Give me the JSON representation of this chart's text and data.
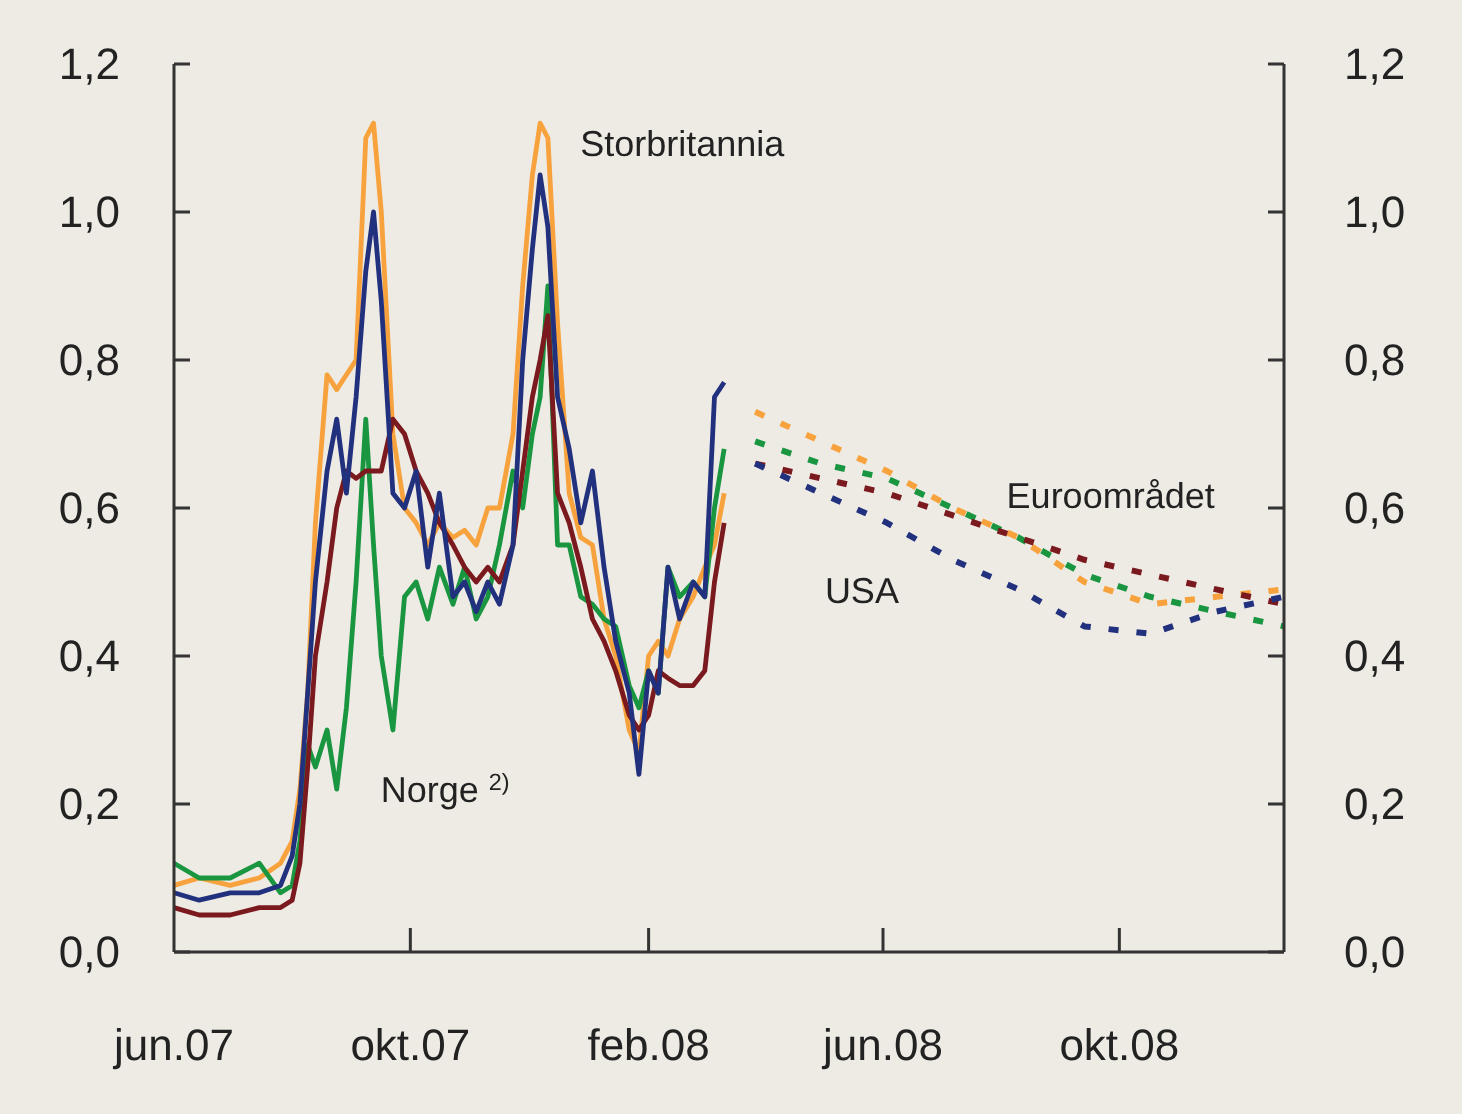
{
  "chart_data": {
    "type": "line",
    "x": [
      "2007-06-01",
      "2007-06-14",
      "2007-06-30",
      "2007-07-15",
      "2007-07-26",
      "2007-08-01",
      "2007-08-05",
      "2007-08-09",
      "2007-08-13",
      "2007-08-19",
      "2007-08-24",
      "2007-08-29",
      "2007-09-03",
      "2007-09-08",
      "2007-09-12",
      "2007-09-16",
      "2007-09-22",
      "2007-09-28",
      "2007-10-04",
      "2007-10-10",
      "2007-10-16",
      "2007-10-23",
      "2007-10-29",
      "2007-11-04",
      "2007-11-10",
      "2007-11-16",
      "2007-11-23",
      "2007-11-28",
      "2007-12-03",
      "2007-12-07",
      "2007-12-11",
      "2007-12-16",
      "2007-12-22",
      "2007-12-28",
      "2008-01-03",
      "2008-01-09",
      "2008-01-15",
      "2008-01-22",
      "2008-01-27",
      "2008-02-01",
      "2008-02-06",
      "2008-02-11",
      "2008-02-17",
      "2008-02-24",
      "2008-03-01",
      "2008-03-06",
      "2008-03-11"
    ],
    "series": [
      {
        "name": "Storbritannia",
        "color": "#f7a23c",
        "values": [
          0.09,
          0.1,
          0.09,
          0.1,
          0.12,
          0.15,
          0.22,
          0.35,
          0.58,
          0.78,
          0.76,
          0.78,
          0.8,
          1.1,
          1.12,
          1.0,
          0.7,
          0.6,
          0.58,
          0.55,
          0.58,
          0.56,
          0.57,
          0.55,
          0.6,
          0.6,
          0.7,
          0.9,
          1.05,
          1.12,
          1.1,
          0.85,
          0.62,
          0.56,
          0.55,
          0.45,
          0.4,
          0.3,
          0.27,
          0.4,
          0.42,
          0.4,
          0.45,
          0.48,
          0.52,
          0.55,
          0.62
        ]
      },
      {
        "name": "Norge $^{2)}$",
        "color": "#1a9641",
        "values": [
          0.12,
          0.1,
          0.1,
          0.12,
          0.08,
          0.09,
          0.15,
          0.28,
          0.25,
          0.3,
          0.22,
          0.33,
          0.5,
          0.72,
          0.55,
          0.4,
          0.3,
          0.48,
          0.5,
          0.45,
          0.52,
          0.47,
          0.52,
          0.45,
          0.48,
          0.55,
          0.65,
          0.6,
          0.7,
          0.75,
          0.9,
          0.55,
          0.55,
          0.48,
          0.47,
          0.45,
          0.44,
          0.36,
          0.33,
          0.38,
          0.35,
          0.52,
          0.48,
          0.5,
          0.48,
          0.6,
          0.68
        ]
      },
      {
        "color": "#7a1a1e",
        "values": [
          0.06,
          0.05,
          0.05,
          0.06,
          0.06,
          0.07,
          0.12,
          0.25,
          0.4,
          0.5,
          0.6,
          0.65,
          0.64,
          0.65,
          0.65,
          0.65,
          0.72,
          0.7,
          0.65,
          0.62,
          0.58,
          0.55,
          0.52,
          0.5,
          0.52,
          0.5,
          0.55,
          0.65,
          0.75,
          0.8,
          0.86,
          0.62,
          0.58,
          0.52,
          0.45,
          0.42,
          0.38,
          0.32,
          0.3,
          0.32,
          0.38,
          0.37,
          0.36,
          0.36,
          0.38,
          0.5,
          0.58
        ]
      },
      {
        "color": "#22317e",
        "values": [
          0.08,
          0.07,
          0.08,
          0.08,
          0.09,
          0.13,
          0.2,
          0.35,
          0.5,
          0.65,
          0.72,
          0.62,
          0.75,
          0.92,
          1.0,
          0.88,
          0.62,
          0.6,
          0.65,
          0.52,
          0.62,
          0.48,
          0.5,
          0.46,
          0.5,
          0.47,
          0.55,
          0.8,
          0.95,
          1.05,
          0.98,
          0.75,
          0.68,
          0.58,
          0.65,
          0.52,
          0.42,
          0.35,
          0.24,
          0.38,
          0.35,
          0.52,
          0.45,
          0.5,
          0.48,
          0.75,
          0.77
        ]
      },
      {
        "color": "#f7a23c",
        "line_style": "dotted",
        "x": [
          "2008-03-27",
          "2008-04-30",
          "2008-06-03",
          "2008-07-07",
          "2008-08-10",
          "2008-09-13",
          "2008-10-17",
          "2008-11-20",
          "2008-12-25"
        ],
        "values": [
          0.73,
          0.69,
          0.65,
          0.6,
          0.56,
          0.5,
          0.47,
          0.48,
          0.49
        ]
      },
      {
        "color": "#1a9641",
        "line_style": "dotted",
        "x": [
          "2008-03-27",
          "2008-04-30",
          "2008-06-03",
          "2008-07-07",
          "2008-08-10",
          "2008-09-13",
          "2008-10-17",
          "2008-11-20",
          "2008-12-25"
        ],
        "values": [
          0.69,
          0.66,
          0.64,
          0.6,
          0.56,
          0.51,
          0.48,
          0.46,
          0.44
        ]
      },
      {
        "name": "Euroområdet",
        "color": "#7a1a1e",
        "line_style": "dotted",
        "x": [
          "2008-03-27",
          "2008-04-30",
          "2008-06-03",
          "2008-07-07",
          "2008-08-10",
          "2008-09-13",
          "2008-10-17",
          "2008-11-20",
          "2008-12-25"
        ],
        "values": [
          0.66,
          0.64,
          0.62,
          0.59,
          0.56,
          0.53,
          0.51,
          0.49,
          0.47
        ]
      },
      {
        "name": "USA",
        "color": "#22317e",
        "line_style": "dotted",
        "x": [
          "2008-03-27",
          "2008-04-30",
          "2008-06-03",
          "2008-07-07",
          "2008-08-10",
          "2008-09-13",
          "2008-10-17",
          "2008-11-20",
          "2008-12-25"
        ],
        "values": [
          0.66,
          0.62,
          0.58,
          0.53,
          0.49,
          0.44,
          0.43,
          0.46,
          0.48
        ]
      }
    ],
    "xlim": [
      "2007-06-01",
      "2008-12-25"
    ],
    "xticks": [
      {
        "value": "2007-06-01",
        "label": "jun.07"
      },
      {
        "value": "2007-10-01",
        "label": "okt.07"
      },
      {
        "value": "2008-02-01",
        "label": "feb.08"
      },
      {
        "value": "2008-06-01",
        "label": "jun.08"
      },
      {
        "value": "2008-10-01",
        "label": "okt.08"
      }
    ],
    "ylim": [
      0,
      1.2
    ],
    "yticks": [
      {
        "value": 0,
        "label": "0,0"
      },
      {
        "value": 0.2,
        "label": "0,2"
      },
      {
        "value": 0.4,
        "label": "0,4"
      },
      {
        "value": 0.6,
        "label": "0,6"
      },
      {
        "value": 0.8,
        "label": "0,8"
      },
      {
        "value": 1.0,
        "label": "1,0"
      },
      {
        "value": 1.2,
        "label": "1,2"
      }
    ],
    "y2lim": [
      0,
      1.2
    ],
    "y2ticks": [
      {
        "value": 0,
        "label": "0,0"
      },
      {
        "value": 0.2,
        "label": "0,2"
      },
      {
        "value": 0.4,
        "label": "0,4"
      },
      {
        "value": 0.6,
        "label": "0,6"
      },
      {
        "value": 0.8,
        "label": "0,8"
      },
      {
        "value": 1.0,
        "label": "1,0"
      },
      {
        "value": 1.2,
        "label": "1,2"
      }
    ],
    "grid": false,
    "line_style": "solid",
    "marker": "none"
  }
}
